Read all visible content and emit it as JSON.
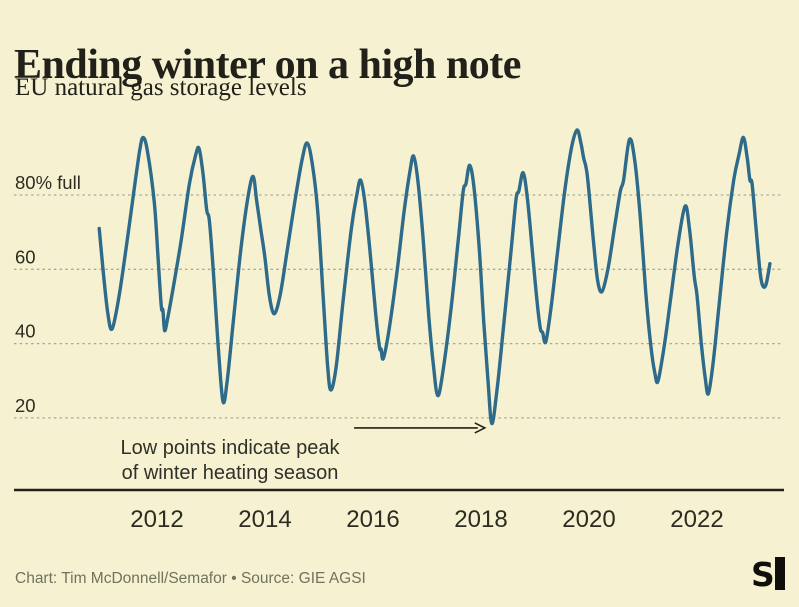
{
  "header": {
    "title": "Ending winter on a high note",
    "subtitle": "EU natural gas storage levels"
  },
  "footer": {
    "credit": "Chart: Tim McDonnell/Semafor • Source: GIE AGSI",
    "logo": "semafor-logo",
    "logo_letter": "S"
  },
  "colors": {
    "background": "#f6f2d1",
    "line": "#2e6a8a",
    "grid": "#a9a896",
    "axis": "#21211a",
    "tick_text": "#2c2c22",
    "annotation_text": "#30302a",
    "footer_text": "#71715f",
    "logo": "#0e0e0a"
  },
  "chart_data": {
    "type": "line",
    "title": "Ending winter on a high note",
    "subtitle": "EU natural gas storage levels",
    "ylabel": "% full",
    "xlim": [
      2010.9,
      2023.55
    ],
    "ylim": [
      0,
      100
    ],
    "grid": "horizontal-dashed",
    "legend": "none",
    "yticks": [
      {
        "value": 80,
        "label": "80% full"
      },
      {
        "value": 60,
        "label": "60"
      },
      {
        "value": 40,
        "label": "40"
      },
      {
        "value": 20,
        "label": "20"
      }
    ],
    "xticks": [
      {
        "value": 2012,
        "label": "2012"
      },
      {
        "value": 2014,
        "label": "2014"
      },
      {
        "value": 2016,
        "label": "2016"
      },
      {
        "value": 2018,
        "label": "2018"
      },
      {
        "value": 2020,
        "label": "2020"
      },
      {
        "value": 2022,
        "label": "2022"
      }
    ],
    "annotation": {
      "line1": "Low points indicate peak",
      "line2": "of winter heating season",
      "arrow": {
        "from_year": 2015.65,
        "to_year": 2018.07,
        "at_value": 17.3
      },
      "target": {
        "year": 2018.2,
        "value": 18.5
      }
    },
    "series": [
      {
        "name": "EU natural gas storage level (% full)",
        "points": [
          [
            2010.93,
            71
          ],
          [
            2011.0,
            60
          ],
          [
            2011.09,
            48
          ],
          [
            2011.17,
            44
          ],
          [
            2011.3,
            53
          ],
          [
            2011.45,
            68
          ],
          [
            2011.6,
            84
          ],
          [
            2011.68,
            92
          ],
          [
            2011.74,
            95.5
          ],
          [
            2011.82,
            92
          ],
          [
            2011.95,
            78
          ],
          [
            2012.02,
            63
          ],
          [
            2012.08,
            50
          ],
          [
            2012.11,
            49
          ],
          [
            2012.14,
            43.5
          ],
          [
            2012.2,
            47
          ],
          [
            2012.3,
            55
          ],
          [
            2012.45,
            68
          ],
          [
            2012.6,
            83
          ],
          [
            2012.72,
            91
          ],
          [
            2012.78,
            92.5
          ],
          [
            2012.85,
            86
          ],
          [
            2012.92,
            76
          ],
          [
            2012.97,
            73
          ],
          [
            2013.05,
            58
          ],
          [
            2013.13,
            40
          ],
          [
            2013.22,
            24.5
          ],
          [
            2013.3,
            30
          ],
          [
            2013.42,
            47
          ],
          [
            2013.55,
            65
          ],
          [
            2013.68,
            79
          ],
          [
            2013.78,
            85
          ],
          [
            2013.85,
            78
          ],
          [
            2013.93,
            70
          ],
          [
            2014.0,
            63
          ],
          [
            2014.08,
            53
          ],
          [
            2014.17,
            48
          ],
          [
            2014.28,
            53
          ],
          [
            2014.4,
            64
          ],
          [
            2014.55,
            78
          ],
          [
            2014.68,
            89
          ],
          [
            2014.78,
            94
          ],
          [
            2014.88,
            88
          ],
          [
            2014.98,
            75
          ],
          [
            2015.08,
            52
          ],
          [
            2015.16,
            34
          ],
          [
            2015.22,
            27.5
          ],
          [
            2015.32,
            34
          ],
          [
            2015.45,
            52
          ],
          [
            2015.6,
            71
          ],
          [
            2015.7,
            80
          ],
          [
            2015.77,
            84
          ],
          [
            2015.85,
            78
          ],
          [
            2015.95,
            64
          ],
          [
            2016.05,
            48
          ],
          [
            2016.12,
            39
          ],
          [
            2016.15,
            38.5
          ],
          [
            2016.19,
            36
          ],
          [
            2016.3,
            44
          ],
          [
            2016.45,
            60
          ],
          [
            2016.58,
            76
          ],
          [
            2016.68,
            86
          ],
          [
            2016.75,
            90.5
          ],
          [
            2016.83,
            84
          ],
          [
            2016.93,
            68
          ],
          [
            2017.03,
            48
          ],
          [
            2017.12,
            34
          ],
          [
            2017.2,
            26
          ],
          [
            2017.3,
            33
          ],
          [
            2017.45,
            50
          ],
          [
            2017.58,
            68
          ],
          [
            2017.67,
            81
          ],
          [
            2017.72,
            83
          ],
          [
            2017.79,
            88
          ],
          [
            2017.87,
            82
          ],
          [
            2017.97,
            65
          ],
          [
            2018.05,
            46
          ],
          [
            2018.13,
            30
          ],
          [
            2018.2,
            18.5
          ],
          [
            2018.3,
            28
          ],
          [
            2018.42,
            45
          ],
          [
            2018.55,
            64
          ],
          [
            2018.65,
            79
          ],
          [
            2018.7,
            81
          ],
          [
            2018.78,
            86
          ],
          [
            2018.86,
            79
          ],
          [
            2018.95,
            65
          ],
          [
            2019.04,
            51
          ],
          [
            2019.1,
            44
          ],
          [
            2019.14,
            43
          ],
          [
            2019.2,
            40.5
          ],
          [
            2019.3,
            50
          ],
          [
            2019.42,
            65
          ],
          [
            2019.55,
            81
          ],
          [
            2019.68,
            93
          ],
          [
            2019.78,
            97.5
          ],
          [
            2019.85,
            94
          ],
          [
            2019.9,
            90
          ],
          [
            2019.97,
            85
          ],
          [
            2020.08,
            68
          ],
          [
            2020.16,
            57
          ],
          [
            2020.24,
            54
          ],
          [
            2020.35,
            60
          ],
          [
            2020.48,
            72
          ],
          [
            2020.58,
            81
          ],
          [
            2020.64,
            84
          ],
          [
            2020.75,
            95
          ],
          [
            2020.85,
            89
          ],
          [
            2020.95,
            74
          ],
          [
            2021.05,
            54
          ],
          [
            2021.14,
            40
          ],
          [
            2021.22,
            32
          ],
          [
            2021.28,
            30
          ],
          [
            2021.4,
            40
          ],
          [
            2021.52,
            53
          ],
          [
            2021.65,
            67
          ],
          [
            2021.78,
            77
          ],
          [
            2021.86,
            71
          ],
          [
            2021.95,
            58
          ],
          [
            2022.0,
            53
          ],
          [
            2022.08,
            40
          ],
          [
            2022.15,
            31
          ],
          [
            2022.21,
            26.5
          ],
          [
            2022.3,
            35
          ],
          [
            2022.42,
            52
          ],
          [
            2022.55,
            70
          ],
          [
            2022.68,
            84
          ],
          [
            2022.78,
            91
          ],
          [
            2022.86,
            95.5
          ],
          [
            2022.93,
            90
          ],
          [
            2022.98,
            84
          ],
          [
            2023.02,
            83
          ],
          [
            2023.1,
            70
          ],
          [
            2023.17,
            59
          ],
          [
            2023.22,
            55.5
          ],
          [
            2023.28,
            56
          ],
          [
            2023.35,
            61.5
          ]
        ]
      }
    ]
  }
}
